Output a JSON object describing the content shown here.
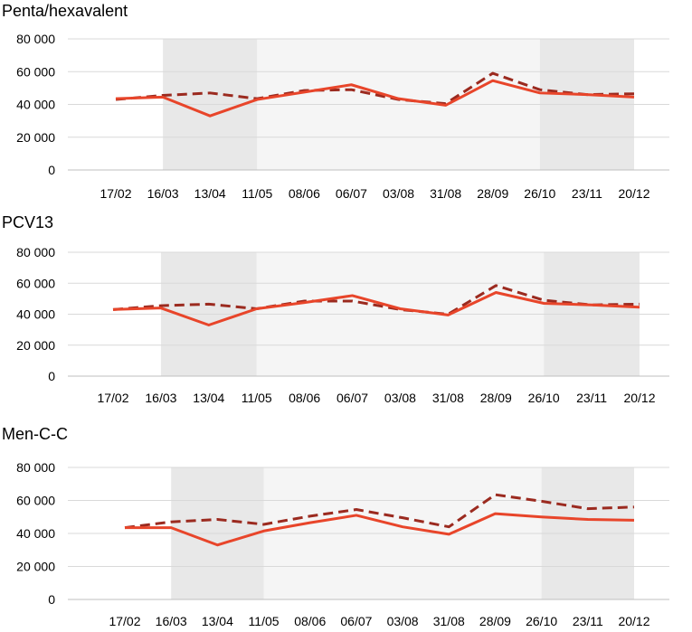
{
  "colors": {
    "actual": "#e8452a",
    "expected": "#9b2a1f",
    "shade_dark": "#e8e8e8",
    "shade_light": "#f5f5f5",
    "grid": "#d9d9d9"
  },
  "chart_data": [
    {
      "type": "line",
      "title": "Penta/hexavalent",
      "categories": [
        "17/02",
        "16/03",
        "13/04",
        "11/05",
        "08/06",
        "06/07",
        "03/08",
        "31/08",
        "28/09",
        "26/10",
        "23/11",
        "20/12"
      ],
      "series": [
        {
          "style": "solid",
          "values": [
            43500,
            44500,
            33000,
            43000,
            47500,
            52000,
            43500,
            39500,
            54500,
            47000,
            46000,
            44500
          ]
        },
        {
          "style": "dashed",
          "values": [
            43000,
            45500,
            47000,
            43500,
            48500,
            49000,
            43000,
            40500,
            59000,
            49000,
            46000,
            46500
          ]
        }
      ],
      "ylim": [
        0,
        80000
      ],
      "yticks": [
        "0",
        "20 000",
        "40 000",
        "60 000",
        "80 000"
      ],
      "grid": true,
      "shaded_periods": [
        {
          "shade": "dark",
          "from": 1,
          "to": 3
        },
        {
          "shade": "light",
          "from": 3,
          "to": 9
        },
        {
          "shade": "dark",
          "from": 9,
          "to": 11
        }
      ]
    },
    {
      "type": "line",
      "title": "PCV13",
      "categories": [
        "17/02",
        "16/03",
        "13/04",
        "11/05",
        "08/06",
        "06/07",
        "03/08",
        "31/08",
        "28/09",
        "26/10",
        "23/11",
        "20/12"
      ],
      "series": [
        {
          "style": "solid",
          "values": [
            43000,
            44000,
            33000,
            43500,
            47500,
            52000,
            43500,
            39500,
            54000,
            47000,
            46000,
            44500
          ]
        },
        {
          "style": "dashed",
          "values": [
            43000,
            45500,
            46500,
            43500,
            48500,
            48500,
            43000,
            40000,
            58500,
            49000,
            46000,
            46500
          ]
        }
      ],
      "ylim": [
        0,
        80000
      ],
      "yticks": [
        "0",
        "20 000",
        "40 000",
        "60 000",
        "80 000"
      ],
      "grid": true,
      "shaded_periods": [
        {
          "shade": "dark",
          "from": 1,
          "to": 3
        },
        {
          "shade": "light",
          "from": 3,
          "to": 9
        },
        {
          "shade": "dark",
          "from": 9,
          "to": 11
        }
      ]
    },
    {
      "type": "line",
      "title": "Men-C-C",
      "categories": [
        "17/02",
        "16/03",
        "13/04",
        "11/05",
        "08/06",
        "06/07",
        "03/08",
        "31/08",
        "28/09",
        "26/10",
        "23/11",
        "20/12"
      ],
      "series": [
        {
          "style": "solid",
          "values": [
            43500,
            43500,
            33000,
            41500,
            46500,
            51000,
            44000,
            39500,
            52000,
            50000,
            48500,
            48000
          ]
        },
        {
          "style": "dashed",
          "values": [
            43500,
            47000,
            48500,
            45500,
            50500,
            54500,
            49500,
            44000,
            63500,
            59500,
            55000,
            56000
          ]
        }
      ],
      "ylim": [
        0,
        80000
      ],
      "yticks": [
        "0",
        "20 000",
        "40 000",
        "60 000",
        "80 000"
      ],
      "grid": true,
      "shaded_periods": [
        {
          "shade": "dark",
          "from": 1,
          "to": 3
        },
        {
          "shade": "light",
          "from": 3,
          "to": 9
        },
        {
          "shade": "dark",
          "from": 9,
          "to": 11
        }
      ]
    }
  ]
}
